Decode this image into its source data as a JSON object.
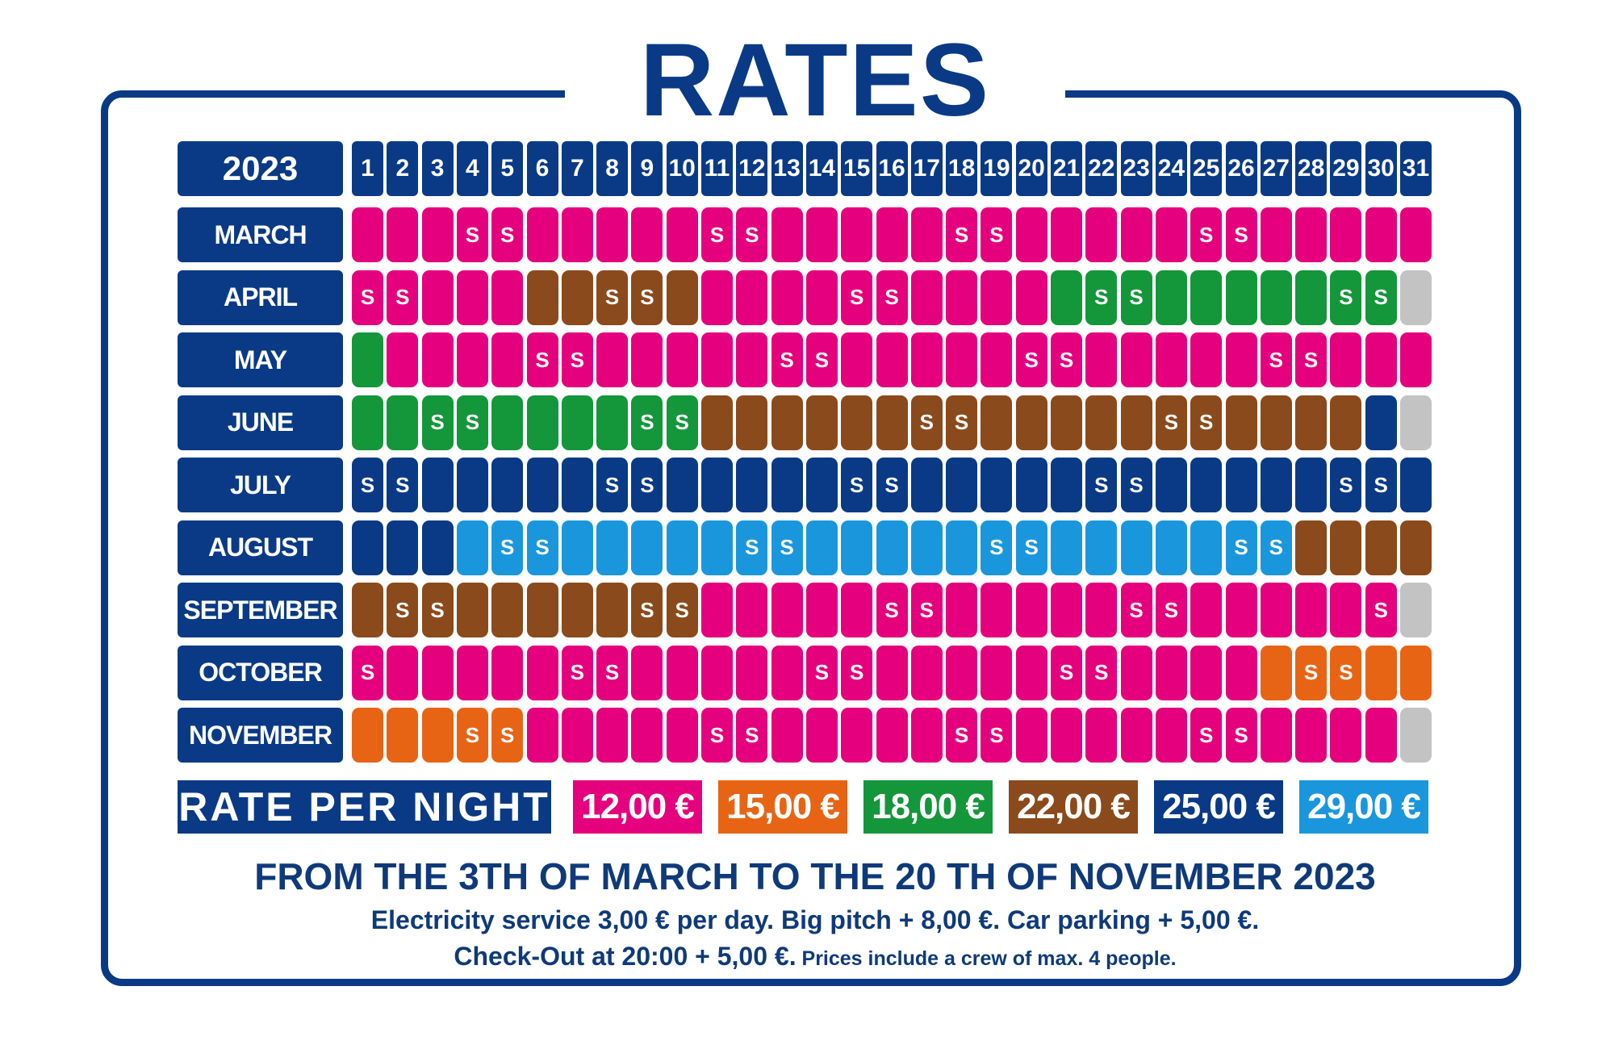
{
  "title": "RATES",
  "year": "2023",
  "days": [
    "1",
    "2",
    "3",
    "4",
    "5",
    "6",
    "7",
    "8",
    "9",
    "10",
    "11",
    "12",
    "13",
    "14",
    "15",
    "16",
    "17",
    "18",
    "19",
    "20",
    "21",
    "22",
    "23",
    "24",
    "25",
    "26",
    "27",
    "28",
    "29",
    "30",
    "31"
  ],
  "colors": {
    "P": "#e5007d",
    "O": "#e86415",
    "G": "#14963a",
    "B": "#8b4a1c",
    "N": "#0a3a86",
    "L": "#1a97dc",
    "X": "#c3c3c3"
  },
  "months": [
    {
      "label": "MARCH",
      "days": [
        {
          "c": "P"
        },
        {
          "c": "P"
        },
        {
          "c": "P"
        },
        {
          "c": "P",
          "t": "S"
        },
        {
          "c": "P",
          "t": "S"
        },
        {
          "c": "P"
        },
        {
          "c": "P"
        },
        {
          "c": "P"
        },
        {
          "c": "P"
        },
        {
          "c": "P"
        },
        {
          "c": "P",
          "t": "S"
        },
        {
          "c": "P",
          "t": "S"
        },
        {
          "c": "P"
        },
        {
          "c": "P"
        },
        {
          "c": "P"
        },
        {
          "c": "P"
        },
        {
          "c": "P"
        },
        {
          "c": "P",
          "t": "S"
        },
        {
          "c": "P",
          "t": "S"
        },
        {
          "c": "P"
        },
        {
          "c": "P"
        },
        {
          "c": "P"
        },
        {
          "c": "P"
        },
        {
          "c": "P"
        },
        {
          "c": "P",
          "t": "S"
        },
        {
          "c": "P",
          "t": "S"
        },
        {
          "c": "P"
        },
        {
          "c": "P"
        },
        {
          "c": "P"
        },
        {
          "c": "P"
        },
        {
          "c": "P"
        }
      ]
    },
    {
      "label": "APRIL",
      "days": [
        {
          "c": "P",
          "t": "S"
        },
        {
          "c": "P",
          "t": "S"
        },
        {
          "c": "P"
        },
        {
          "c": "P"
        },
        {
          "c": "P"
        },
        {
          "c": "B"
        },
        {
          "c": "B"
        },
        {
          "c": "B",
          "t": "S"
        },
        {
          "c": "B",
          "t": "S"
        },
        {
          "c": "B"
        },
        {
          "c": "P"
        },
        {
          "c": "P"
        },
        {
          "c": "P"
        },
        {
          "c": "P"
        },
        {
          "c": "P",
          "t": "S"
        },
        {
          "c": "P",
          "t": "S"
        },
        {
          "c": "P"
        },
        {
          "c": "P"
        },
        {
          "c": "P"
        },
        {
          "c": "P"
        },
        {
          "c": "G"
        },
        {
          "c": "G",
          "t": "S"
        },
        {
          "c": "G",
          "t": "S"
        },
        {
          "c": "G"
        },
        {
          "c": "G"
        },
        {
          "c": "G"
        },
        {
          "c": "G"
        },
        {
          "c": "G"
        },
        {
          "c": "G",
          "t": "S"
        },
        {
          "c": "G",
          "t": "S"
        },
        {
          "c": "X"
        }
      ]
    },
    {
      "label": "MAY",
      "days": [
        {
          "c": "G"
        },
        {
          "c": "P"
        },
        {
          "c": "P"
        },
        {
          "c": "P"
        },
        {
          "c": "P"
        },
        {
          "c": "P",
          "t": "S"
        },
        {
          "c": "P",
          "t": "S"
        },
        {
          "c": "P"
        },
        {
          "c": "P"
        },
        {
          "c": "P"
        },
        {
          "c": "P"
        },
        {
          "c": "P"
        },
        {
          "c": "P",
          "t": "S"
        },
        {
          "c": "P",
          "t": "S"
        },
        {
          "c": "P"
        },
        {
          "c": "P"
        },
        {
          "c": "P"
        },
        {
          "c": "P"
        },
        {
          "c": "P"
        },
        {
          "c": "P",
          "t": "S"
        },
        {
          "c": "P",
          "t": "S"
        },
        {
          "c": "P"
        },
        {
          "c": "P"
        },
        {
          "c": "P"
        },
        {
          "c": "P"
        },
        {
          "c": "P"
        },
        {
          "c": "P",
          "t": "S"
        },
        {
          "c": "P",
          "t": "S"
        },
        {
          "c": "P"
        },
        {
          "c": "P"
        },
        {
          "c": "P"
        }
      ]
    },
    {
      "label": "JUNE",
      "days": [
        {
          "c": "G"
        },
        {
          "c": "G"
        },
        {
          "c": "G",
          "t": "S"
        },
        {
          "c": "G",
          "t": "S"
        },
        {
          "c": "G"
        },
        {
          "c": "G"
        },
        {
          "c": "G"
        },
        {
          "c": "G"
        },
        {
          "c": "G",
          "t": "S"
        },
        {
          "c": "G",
          "t": "S"
        },
        {
          "c": "B"
        },
        {
          "c": "B"
        },
        {
          "c": "B"
        },
        {
          "c": "B"
        },
        {
          "c": "B"
        },
        {
          "c": "B"
        },
        {
          "c": "B",
          "t": "S"
        },
        {
          "c": "B",
          "t": "S"
        },
        {
          "c": "B"
        },
        {
          "c": "B"
        },
        {
          "c": "B"
        },
        {
          "c": "B"
        },
        {
          "c": "B"
        },
        {
          "c": "B",
          "t": "S"
        },
        {
          "c": "B",
          "t": "S"
        },
        {
          "c": "B"
        },
        {
          "c": "B"
        },
        {
          "c": "B"
        },
        {
          "c": "B"
        },
        {
          "c": "N"
        },
        {
          "c": "X"
        }
      ]
    },
    {
      "label": "JULY",
      "days": [
        {
          "c": "N",
          "t": "S"
        },
        {
          "c": "N",
          "t": "S"
        },
        {
          "c": "N"
        },
        {
          "c": "N"
        },
        {
          "c": "N"
        },
        {
          "c": "N"
        },
        {
          "c": "N"
        },
        {
          "c": "N",
          "t": "S"
        },
        {
          "c": "N",
          "t": "S"
        },
        {
          "c": "N"
        },
        {
          "c": "N"
        },
        {
          "c": "N"
        },
        {
          "c": "N"
        },
        {
          "c": "N"
        },
        {
          "c": "N",
          "t": "S"
        },
        {
          "c": "N",
          "t": "S"
        },
        {
          "c": "N"
        },
        {
          "c": "N"
        },
        {
          "c": "N"
        },
        {
          "c": "N"
        },
        {
          "c": "N"
        },
        {
          "c": "N",
          "t": "S"
        },
        {
          "c": "N",
          "t": "S"
        },
        {
          "c": "N"
        },
        {
          "c": "N"
        },
        {
          "c": "N"
        },
        {
          "c": "N"
        },
        {
          "c": "N"
        },
        {
          "c": "N",
          "t": "S"
        },
        {
          "c": "N",
          "t": "S"
        },
        {
          "c": "N"
        }
      ]
    },
    {
      "label": "AUGUST",
      "days": [
        {
          "c": "N"
        },
        {
          "c": "N"
        },
        {
          "c": "N"
        },
        {
          "c": "L"
        },
        {
          "c": "L",
          "t": "S"
        },
        {
          "c": "L",
          "t": "S"
        },
        {
          "c": "L"
        },
        {
          "c": "L"
        },
        {
          "c": "L"
        },
        {
          "c": "L"
        },
        {
          "c": "L"
        },
        {
          "c": "L",
          "t": "S"
        },
        {
          "c": "L",
          "t": "S"
        },
        {
          "c": "L"
        },
        {
          "c": "L"
        },
        {
          "c": "L"
        },
        {
          "c": "L"
        },
        {
          "c": "L"
        },
        {
          "c": "L",
          "t": "S"
        },
        {
          "c": "L",
          "t": "S"
        },
        {
          "c": "L"
        },
        {
          "c": "L"
        },
        {
          "c": "L"
        },
        {
          "c": "L"
        },
        {
          "c": "L"
        },
        {
          "c": "L",
          "t": "S"
        },
        {
          "c": "L",
          "t": "S"
        },
        {
          "c": "B"
        },
        {
          "c": "B"
        },
        {
          "c": "B"
        },
        {
          "c": "B"
        }
      ]
    },
    {
      "label": "SEPTEMBER",
      "days": [
        {
          "c": "B"
        },
        {
          "c": "B",
          "t": "S"
        },
        {
          "c": "B",
          "t": "S"
        },
        {
          "c": "B"
        },
        {
          "c": "B"
        },
        {
          "c": "B"
        },
        {
          "c": "B"
        },
        {
          "c": "B"
        },
        {
          "c": "B",
          "t": "S"
        },
        {
          "c": "B",
          "t": "S"
        },
        {
          "c": "P"
        },
        {
          "c": "P"
        },
        {
          "c": "P"
        },
        {
          "c": "P"
        },
        {
          "c": "P"
        },
        {
          "c": "P",
          "t": "S"
        },
        {
          "c": "P",
          "t": "S"
        },
        {
          "c": "P"
        },
        {
          "c": "P"
        },
        {
          "c": "P"
        },
        {
          "c": "P"
        },
        {
          "c": "P"
        },
        {
          "c": "P",
          "t": "S"
        },
        {
          "c": "P",
          "t": "S"
        },
        {
          "c": "P"
        },
        {
          "c": "P"
        },
        {
          "c": "P"
        },
        {
          "c": "P"
        },
        {
          "c": "P"
        },
        {
          "c": "P",
          "t": "S"
        },
        {
          "c": "X"
        }
      ]
    },
    {
      "label": "OCTOBER",
      "days": [
        {
          "c": "P",
          "t": "S"
        },
        {
          "c": "P"
        },
        {
          "c": "P"
        },
        {
          "c": "P"
        },
        {
          "c": "P"
        },
        {
          "c": "P"
        },
        {
          "c": "P",
          "t": "S"
        },
        {
          "c": "P",
          "t": "S"
        },
        {
          "c": "P"
        },
        {
          "c": "P"
        },
        {
          "c": "P"
        },
        {
          "c": "P"
        },
        {
          "c": "P"
        },
        {
          "c": "P",
          "t": "S"
        },
        {
          "c": "P",
          "t": "S"
        },
        {
          "c": "P"
        },
        {
          "c": "P"
        },
        {
          "c": "P"
        },
        {
          "c": "P"
        },
        {
          "c": "P"
        },
        {
          "c": "P",
          "t": "S"
        },
        {
          "c": "P",
          "t": "S"
        },
        {
          "c": "P"
        },
        {
          "c": "P"
        },
        {
          "c": "P"
        },
        {
          "c": "P"
        },
        {
          "c": "O"
        },
        {
          "c": "O",
          "t": "S"
        },
        {
          "c": "O",
          "t": "S"
        },
        {
          "c": "O"
        },
        {
          "c": "O"
        }
      ]
    },
    {
      "label": "NOVEMBER",
      "days": [
        {
          "c": "O"
        },
        {
          "c": "O"
        },
        {
          "c": "O"
        },
        {
          "c": "O",
          "t": "S"
        },
        {
          "c": "O",
          "t": "S"
        },
        {
          "c": "P"
        },
        {
          "c": "P"
        },
        {
          "c": "P"
        },
        {
          "c": "P"
        },
        {
          "c": "P"
        },
        {
          "c": "P",
          "t": "S"
        },
        {
          "c": "P",
          "t": "S"
        },
        {
          "c": "P"
        },
        {
          "c": "P"
        },
        {
          "c": "P"
        },
        {
          "c": "P"
        },
        {
          "c": "P"
        },
        {
          "c": "P",
          "t": "S"
        },
        {
          "c": "P",
          "t": "S"
        },
        {
          "c": "P"
        },
        {
          "c": "P"
        },
        {
          "c": "P"
        },
        {
          "c": "P"
        },
        {
          "c": "P"
        },
        {
          "c": "P",
          "t": "S"
        },
        {
          "c": "P",
          "t": "S"
        },
        {
          "c": "P"
        },
        {
          "c": "P"
        },
        {
          "c": "P"
        },
        {
          "c": "P"
        },
        {
          "c": "X"
        }
      ]
    }
  ],
  "legend": {
    "title": "RATE PER NIGHT",
    "items": [
      {
        "price": "12,00 €",
        "c": "P"
      },
      {
        "price": "15,00 €",
        "c": "O"
      },
      {
        "price": "18,00 €",
        "c": "G"
      },
      {
        "price": "22,00 €",
        "c": "B"
      },
      {
        "price": "25,00 €",
        "c": "N"
      },
      {
        "price": "29,00 €",
        "c": "L"
      }
    ]
  },
  "footer": {
    "line1": "FROM THE 3TH OF MARCH TO THE 20 TH OF NOVEMBER 2023",
    "line2": "Electricity service 3,00 € per day. Big pitch + 8,00 €. Car parking + 5,00 €.",
    "line3_main": "Check-Out at 20:00 + 5,00 €.",
    "line3_small": " Prices include a crew of max. 4 people."
  }
}
